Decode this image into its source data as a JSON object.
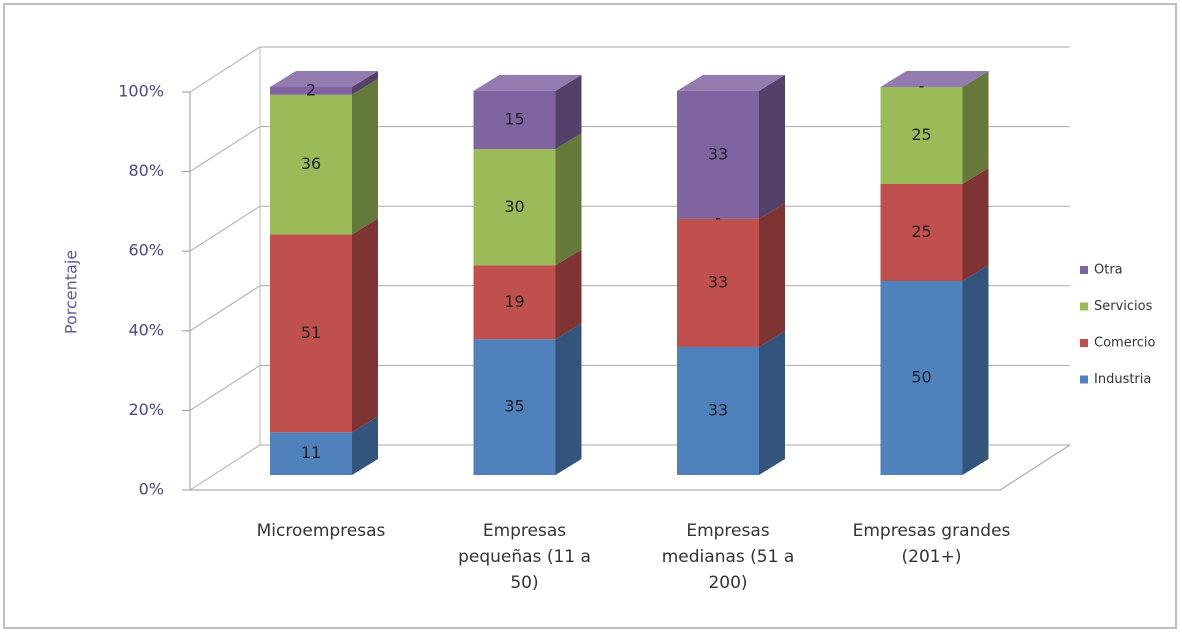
{
  "chart_data": {
    "type": "bar3d_stacked",
    "y_label": "Porcentaje",
    "categories": [
      "Microempresas",
      "Empresas pequeñas (11 a 50)",
      "Empresas medianas (51 a 200)",
      "Empresas grandes (201+)"
    ],
    "series": [
      {
        "name": "Industria",
        "color": "#4f81bd",
        "values": [
          11,
          35,
          33,
          50
        ]
      },
      {
        "name": "Comercio",
        "color": "#c0504d",
        "values": [
          51,
          19,
          33,
          25
        ]
      },
      {
        "name": "Servicios",
        "color": "#9bbb59",
        "values": [
          36,
          30,
          0,
          25
        ],
        "value_labels": [
          "36",
          "30",
          "-",
          "25"
        ]
      },
      {
        "name": "Otra",
        "color": "#8064a2",
        "values": [
          2,
          15,
          33,
          0
        ],
        "value_labels": [
          "2",
          "15",
          "33",
          "-"
        ]
      }
    ],
    "ylim": [
      0,
      100
    ],
    "yticks": [
      {
        "value": 0,
        "label": "0%"
      },
      {
        "value": 20,
        "label": "20%"
      },
      {
        "value": 40,
        "label": "40%"
      },
      {
        "value": 60,
        "label": "60%"
      },
      {
        "value": 80,
        "label": "80%"
      },
      {
        "value": 100,
        "label": "100%"
      }
    ],
    "grid": true
  }
}
